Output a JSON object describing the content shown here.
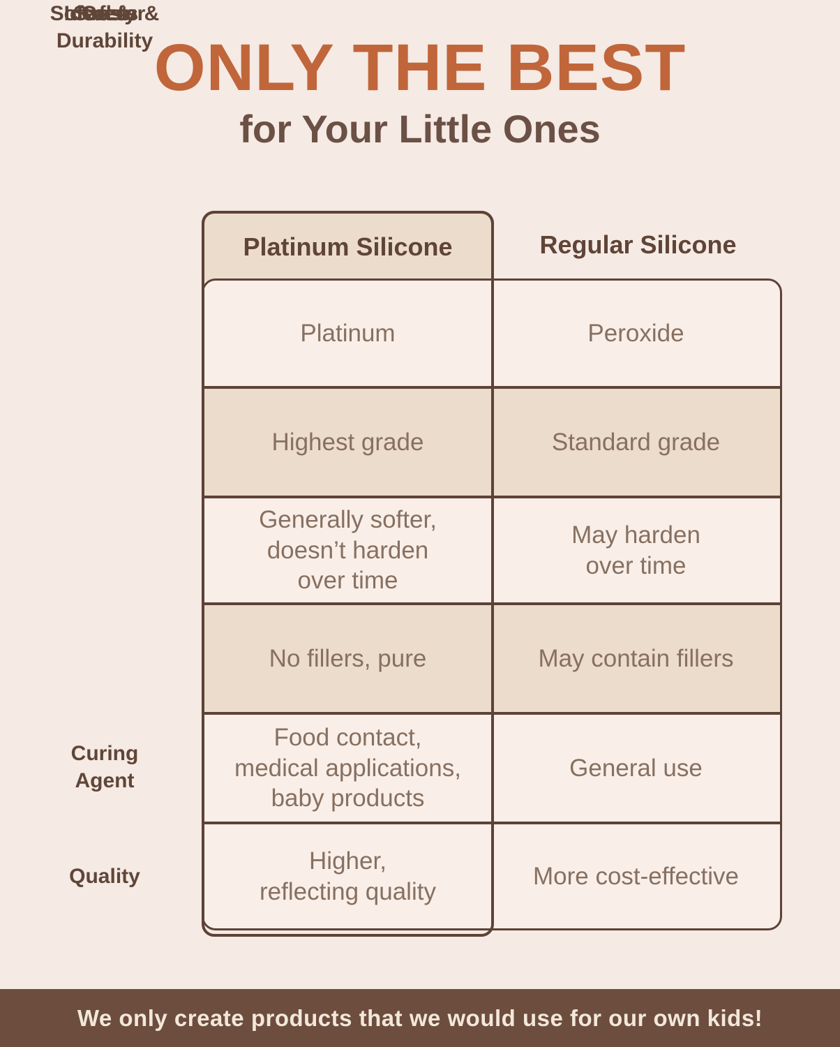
{
  "header": {
    "title": "ONLY THE BEST",
    "subtitle": "for Your Little Ones"
  },
  "chart_data": {
    "type": "table",
    "title": "ONLY THE BEST for Your Little Ones",
    "columns": [
      "",
      "Platinum Silicone",
      "Regular Silicone"
    ],
    "rows": [
      [
        "Curing Agent",
        "Platinum",
        "Peroxide"
      ],
      [
        "Quality",
        "Highest grade",
        "Standard grade"
      ],
      [
        "Softness & Durability",
        "Generally softer, doesn’t harden over time",
        "May harden over time"
      ],
      [
        "Safety",
        "No fillers, pure",
        "May contain fillers"
      ],
      [
        "Ideal for",
        "Food contact, medical applications, baby products",
        "General use"
      ],
      [
        "Cost",
        "Higher, reflecting quality",
        "More cost-effective"
      ]
    ]
  },
  "table": {
    "columns": [
      "Platinum Silicone",
      "Regular Silicone"
    ],
    "rows": [
      {
        "label": "Curing\nAgent",
        "platinum": "Platinum",
        "regular": "Peroxide",
        "tone": "light"
      },
      {
        "label": "Quality",
        "platinum": "Highest grade",
        "regular": "Standard grade",
        "tone": "tan"
      },
      {
        "label": "Softness &\nDurability",
        "platinum": "Generally softer,\ndoesn’t harden\nover time",
        "regular": "May harden\nover time",
        "tone": "light"
      },
      {
        "label": "Safety",
        "platinum": "No fillers, pure",
        "regular": "May contain fillers",
        "tone": "tan"
      },
      {
        "label": "Ideal for",
        "platinum": "Food contact,\nmedical applications,\nbaby products",
        "regular": "General use",
        "tone": "light"
      },
      {
        "label": "Cost",
        "platinum": "Higher,\nreflecting quality",
        "regular": "More cost-effective",
        "tone": "light"
      }
    ]
  },
  "footer": {
    "text": "We only create products that we would use for our own kids!"
  },
  "colors": {
    "page_background": "#f5eae4",
    "title_orange": "#c0663a",
    "subtitle_brown": "#6b5046",
    "cell_light": "#f9efe8",
    "cell_tan": "#ecdccc",
    "border_brown": "#5d4237",
    "cell_text": "#877061",
    "label_text": "#5f4638",
    "footer_background": "#6d4d3e",
    "footer_text": "#f2e8da"
  }
}
